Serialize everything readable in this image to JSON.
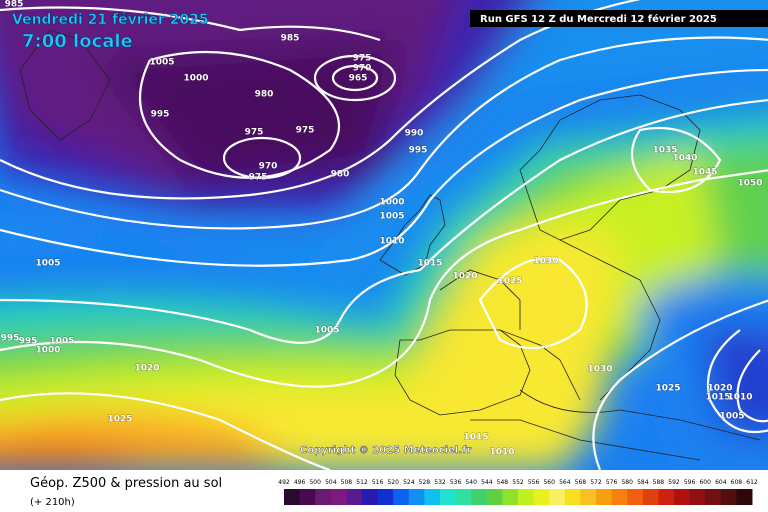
{
  "header": {
    "title": "Vendredi 21 février 2025",
    "time": "7:00 locale",
    "run": "Run GFS 12 Z du Mercredi 12 février 2025"
  },
  "copyright": "Copyright © 2025 Meteociel.fr",
  "footer": {
    "title": "Géop. Z500 & pression au sol",
    "lead": "(+ 210h)"
  },
  "isobar_labels": [
    985,
    985,
    1005,
    1000,
    975,
    970,
    965,
    980,
    995,
    975,
    975,
    970,
    975,
    980,
    990,
    995,
    1000,
    1005,
    1010,
    1005,
    1015,
    1020,
    1030,
    1025,
    1035,
    1040,
    1045,
    1050,
    1005,
    995,
    995,
    1000,
    1005,
    1020,
    1030,
    1025,
    1020,
    1015,
    1010,
    1005,
    1025,
    1015,
    1010
  ],
  "legend": {
    "values": [
      492,
      496,
      500,
      504,
      508,
      512,
      516,
      520,
      524,
      528,
      532,
      536,
      540,
      544,
      548,
      552,
      556,
      560,
      564,
      568,
      572,
      576,
      580,
      584,
      588,
      592,
      596,
      600,
      604,
      608,
      612
    ],
    "colors": [
      "#2a0a30",
      "#4a0a50",
      "#6a1a70",
      "#801a80",
      "#5a1a90",
      "#2a1ab0",
      "#1030d0",
      "#1060f0",
      "#1090f0",
      "#10c0f0",
      "#20e0d0",
      "#30e0a0",
      "#40d070",
      "#60d040",
      "#90e030",
      "#c0f020",
      "#e8f020",
      "#f8f060",
      "#f8e020",
      "#f8c020",
      "#f8a010",
      "#f88010",
      "#f06010",
      "#e04010",
      "#d02010",
      "#b01010",
      "#901010",
      "#701010",
      "#501010",
      "#300808"
    ]
  }
}
